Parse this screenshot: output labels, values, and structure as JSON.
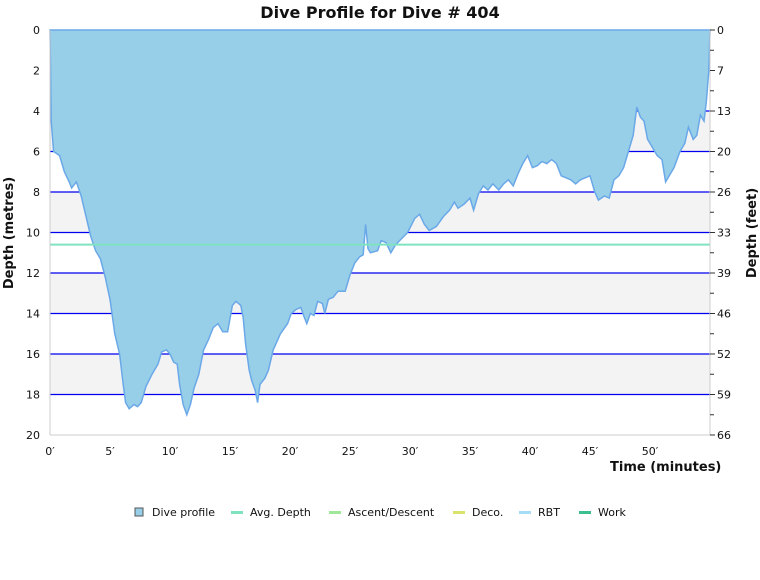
{
  "chart_data": {
    "type": "area",
    "title": "Dive Profile for Dive # 404",
    "xlabel": "Time (minutes)",
    "ylabel": "Depth (metres)",
    "ylabel_right": "Depth (feet)",
    "xlim": [
      0,
      55
    ],
    "ylim": [
      0,
      20
    ],
    "x_ticks": [
      0,
      5,
      10,
      15,
      20,
      25,
      30,
      35,
      40,
      45,
      50
    ],
    "x_tick_labels": [
      "0′",
      "5′",
      "10′",
      "15′",
      "20′",
      "25′",
      "30′",
      "35′",
      "40′",
      "45′",
      "50′"
    ],
    "y_ticks": [
      0,
      2,
      4,
      6,
      8,
      10,
      12,
      14,
      16,
      18,
      20
    ],
    "y_tick_labels": [
      "0",
      "2",
      "4",
      "6",
      "8",
      "10",
      "12",
      "14",
      "16",
      "18",
      "20"
    ],
    "y_right_tick_labels": [
      "0",
      "7",
      "13",
      "20",
      "26",
      "33",
      "39",
      "46",
      "52",
      "59",
      "66"
    ],
    "grid": true,
    "avg_depth": 10.6,
    "legend_position": "bottom",
    "legend": [
      {
        "name": "Dive profile",
        "color": "#98cfe8",
        "marker": "square"
      },
      {
        "name": "Avg. Depth",
        "color": "#7fe3c0",
        "marker": "line"
      },
      {
        "name": "Ascent/Descent",
        "color": "#9fe89a",
        "marker": "line"
      },
      {
        "name": "Deco.",
        "color": "#d9e36b",
        "marker": "line"
      },
      {
        "name": "RBT",
        "color": "#a6dcf5",
        "marker": "line"
      },
      {
        "name": "Work",
        "color": "#3cbf8f",
        "marker": "line"
      }
    ],
    "series": [
      {
        "name": "Dive profile",
        "points": [
          [
            0,
            0
          ],
          [
            0.05,
            2
          ],
          [
            0.1,
            4.5
          ],
          [
            0.3,
            6
          ],
          [
            0.8,
            6.2
          ],
          [
            1.2,
            7
          ],
          [
            1.6,
            7.5
          ],
          [
            1.8,
            7.8
          ],
          [
            2.2,
            7.5
          ],
          [
            2.6,
            8.2
          ],
          [
            3,
            9.2
          ],
          [
            3.4,
            10.2
          ],
          [
            3.8,
            10.9
          ],
          [
            4.2,
            11.3
          ],
          [
            4.6,
            12.2
          ],
          [
            5,
            13.3
          ],
          [
            5.4,
            15
          ],
          [
            5.8,
            16
          ],
          [
            6.1,
            17.5
          ],
          [
            6.3,
            18.4
          ],
          [
            6.6,
            18.7
          ],
          [
            7,
            18.5
          ],
          [
            7.3,
            18.6
          ],
          [
            7.6,
            18.4
          ],
          [
            8,
            17.6
          ],
          [
            8.5,
            17
          ],
          [
            9,
            16.5
          ],
          [
            9.3,
            15.9
          ],
          [
            9.7,
            15.8
          ],
          [
            10,
            16
          ],
          [
            10.3,
            16.4
          ],
          [
            10.6,
            16.5
          ],
          [
            10.8,
            17.5
          ],
          [
            11.1,
            18.5
          ],
          [
            11.4,
            19
          ],
          [
            11.7,
            18.5
          ],
          [
            12,
            17.7
          ],
          [
            12.4,
            17
          ],
          [
            12.8,
            15.8
          ],
          [
            13.2,
            15.3
          ],
          [
            13.6,
            14.7
          ],
          [
            14,
            14.5
          ],
          [
            14.4,
            14.9
          ],
          [
            14.8,
            14.9
          ],
          [
            15.2,
            13.6
          ],
          [
            15.5,
            13.4
          ],
          [
            15.9,
            13.6
          ],
          [
            16.1,
            14.2
          ],
          [
            16.3,
            15.5
          ],
          [
            16.6,
            16.8
          ],
          [
            16.8,
            17.3
          ],
          [
            17.1,
            17.8
          ],
          [
            17.3,
            18.4
          ],
          [
            17.5,
            17.5
          ],
          [
            17.9,
            17.2
          ],
          [
            18.2,
            16.8
          ],
          [
            18.6,
            15.8
          ],
          [
            19.2,
            15
          ],
          [
            19.8,
            14.5
          ],
          [
            20.1,
            14
          ],
          [
            20.5,
            13.8
          ],
          [
            20.9,
            13.7
          ],
          [
            21.2,
            14.2
          ],
          [
            21.4,
            14.5
          ],
          [
            21.7,
            14
          ],
          [
            22,
            14.1
          ],
          [
            22.3,
            13.4
          ],
          [
            22.7,
            13.5
          ],
          [
            22.9,
            14
          ],
          [
            23.2,
            13.3
          ],
          [
            23.6,
            13.2
          ],
          [
            24,
            12.9
          ],
          [
            24.6,
            12.9
          ],
          [
            25,
            12.1
          ],
          [
            25.4,
            11.5
          ],
          [
            25.8,
            11.2
          ],
          [
            26.1,
            11.1
          ],
          [
            26.3,
            9.6
          ],
          [
            26.5,
            10.8
          ],
          [
            26.7,
            11
          ],
          [
            27.3,
            10.9
          ],
          [
            27.6,
            10.4
          ],
          [
            28,
            10.5
          ],
          [
            28.4,
            11
          ],
          [
            28.8,
            10.6
          ],
          [
            29.3,
            10.3
          ],
          [
            29.8,
            10
          ],
          [
            30.4,
            9.3
          ],
          [
            30.8,
            9.1
          ],
          [
            31.2,
            9.6
          ],
          [
            31.6,
            9.9
          ],
          [
            32.2,
            9.7
          ],
          [
            32.8,
            9.2
          ],
          [
            33.3,
            8.9
          ],
          [
            33.7,
            8.5
          ],
          [
            34,
            8.8
          ],
          [
            34.5,
            8.6
          ],
          [
            35,
            8.3
          ],
          [
            35.3,
            8.9
          ],
          [
            35.7,
            8.1
          ],
          [
            36.1,
            7.7
          ],
          [
            36.5,
            7.9
          ],
          [
            36.9,
            7.6
          ],
          [
            37.4,
            7.9
          ],
          [
            37.8,
            7.6
          ],
          [
            38.2,
            7.4
          ],
          [
            38.6,
            7.7
          ],
          [
            39,
            7.1
          ],
          [
            39.4,
            6.6
          ],
          [
            39.8,
            6.2
          ],
          [
            40.2,
            6.8
          ],
          [
            40.6,
            6.7
          ],
          [
            41,
            6.5
          ],
          [
            41.4,
            6.6
          ],
          [
            41.8,
            6.4
          ],
          [
            42.2,
            6.6
          ],
          [
            42.6,
            7.2
          ],
          [
            43,
            7.3
          ],
          [
            43.4,
            7.4
          ],
          [
            43.8,
            7.6
          ],
          [
            44.2,
            7.4
          ],
          [
            44.6,
            7.3
          ],
          [
            45,
            7.2
          ],
          [
            45.4,
            8
          ],
          [
            45.7,
            8.4
          ],
          [
            46.2,
            8.2
          ],
          [
            46.6,
            8.3
          ],
          [
            47,
            7.4
          ],
          [
            47.4,
            7.2
          ],
          [
            47.8,
            6.8
          ],
          [
            48.2,
            6
          ],
          [
            48.6,
            5.2
          ],
          [
            48.9,
            3.8
          ],
          [
            49.2,
            4.3
          ],
          [
            49.5,
            4.5
          ],
          [
            49.8,
            5.4
          ],
          [
            50.2,
            5.8
          ],
          [
            50.6,
            6.2
          ],
          [
            51,
            6.4
          ],
          [
            51.3,
            7.5
          ],
          [
            51.6,
            7.2
          ],
          [
            52,
            6.8
          ],
          [
            52.5,
            6
          ],
          [
            52.9,
            5.6
          ],
          [
            53.2,
            4.8
          ],
          [
            53.6,
            5.4
          ],
          [
            53.9,
            5.2
          ],
          [
            54.2,
            4.2
          ],
          [
            54.5,
            4.5
          ],
          [
            54.7,
            3.5
          ],
          [
            54.9,
            2
          ],
          [
            55,
            0
          ]
        ]
      }
    ]
  }
}
